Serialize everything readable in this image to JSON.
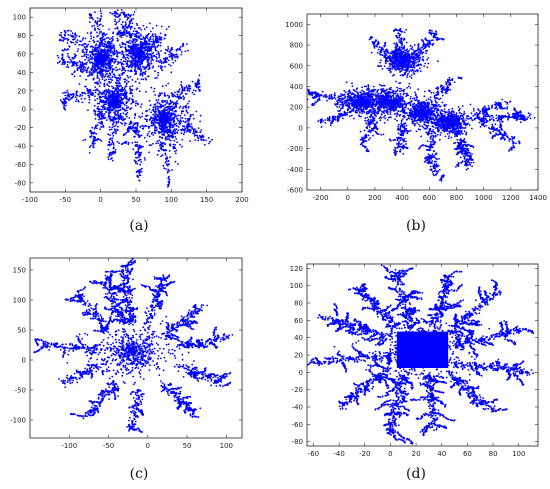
{
  "chart_data": [
    {
      "type": "scatter",
      "caption": "(a)",
      "xlim": [
        -100,
        200
      ],
      "ylim": [
        -90,
        110
      ],
      "xticks": [
        "-100",
        "-50",
        "0",
        "50",
        "100",
        "150",
        "200"
      ],
      "yticks": [
        "100",
        "80",
        "60",
        "40",
        "20",
        "0",
        "-20",
        "-40",
        "-60",
        "-80"
      ],
      "grid": false,
      "color": "#0000ff",
      "description_shape": "diffusion-limited aggregation cluster with several dense centers",
      "clusters": [
        {
          "x": 0,
          "y": 55,
          "spread": 30
        },
        {
          "x": 55,
          "y": 60,
          "spread": 35
        },
        {
          "x": 20,
          "y": 10,
          "spread": 30
        },
        {
          "x": 90,
          "y": -10,
          "spread": 35
        }
      ],
      "branches": [
        {
          "from": [
            45,
            60
          ],
          "to": [
            40,
            105
          ]
        },
        {
          "from": [
            60,
            60
          ],
          "to": [
            90,
            85
          ]
        },
        {
          "from": [
            10,
            60
          ],
          "to": [
            -10,
            100
          ]
        },
        {
          "from": [
            -10,
            40
          ],
          "to": [
            -60,
            55
          ]
        },
        {
          "from": [
            -5,
            20
          ],
          "to": [
            -55,
            10
          ]
        },
        {
          "from": [
            5,
            0
          ],
          "to": [
            -15,
            -40
          ]
        },
        {
          "from": [
            20,
            -5
          ],
          "to": [
            15,
            -55
          ]
        },
        {
          "from": [
            50,
            -10
          ],
          "to": [
            55,
            -75
          ]
        },
        {
          "from": [
            90,
            -20
          ],
          "to": [
            95,
            -70
          ]
        },
        {
          "from": [
            110,
            -15
          ],
          "to": [
            155,
            -35
          ]
        },
        {
          "from": [
            100,
            10
          ],
          "to": [
            140,
            30
          ]
        },
        {
          "from": [
            85,
            45
          ],
          "to": [
            120,
            70
          ]
        },
        {
          "from": [
            -20,
            70
          ],
          "to": [
            -55,
            80
          ]
        },
        {
          "from": [
            30,
            80
          ],
          "to": [
            20,
            105
          ]
        }
      ]
    },
    {
      "type": "scatter",
      "caption": "(b)",
      "xlim": [
        -300,
        1400
      ],
      "ylim": [
        -600,
        1100
      ],
      "xticks": [
        "-200",
        "0",
        "200",
        "400",
        "600",
        "800",
        "1000",
        "1200",
        "1400"
      ],
      "yticks": [
        "1000",
        "800",
        "600",
        "400",
        "200",
        "0",
        "-200",
        "-400",
        "-600"
      ],
      "grid": false,
      "color": "#0000ff",
      "description_shape": "elongated diffusion-limited aggregation cluster",
      "clusters": [
        {
          "x": 300,
          "y": 250,
          "spread": 180
        },
        {
          "x": 550,
          "y": 150,
          "spread": 170
        },
        {
          "x": 400,
          "y": 650,
          "spread": 160
        },
        {
          "x": 100,
          "y": 250,
          "spread": 150
        },
        {
          "x": 750,
          "y": 50,
          "spread": 140
        }
      ],
      "branches": [
        {
          "from": [
            400,
            600
          ],
          "to": [
            380,
            960
          ]
        },
        {
          "from": [
            500,
            650
          ],
          "to": [
            650,
            920
          ]
        },
        {
          "from": [
            300,
            650
          ],
          "to": [
            180,
            850
          ]
        },
        {
          "from": [
            100,
            250
          ],
          "to": [
            -280,
            320
          ]
        },
        {
          "from": [
            0,
            150
          ],
          "to": [
            -200,
            50
          ]
        },
        {
          "from": [
            200,
            100
          ],
          "to": [
            120,
            -150
          ]
        },
        {
          "from": [
            400,
            50
          ],
          "to": [
            380,
            -230
          ]
        },
        {
          "from": [
            600,
            0
          ],
          "to": [
            650,
            -470
          ]
        },
        {
          "from": [
            800,
            0
          ],
          "to": [
            900,
            -380
          ]
        },
        {
          "from": [
            900,
            100
          ],
          "to": [
            1340,
            110
          ]
        },
        {
          "from": [
            1000,
            50
          ],
          "to": [
            1250,
            -150
          ]
        },
        {
          "from": [
            950,
            150
          ],
          "to": [
            1180,
            250
          ]
        },
        {
          "from": [
            650,
            300
          ],
          "to": [
            780,
            470
          ]
        }
      ]
    },
    {
      "type": "scatter",
      "caption": "(c)",
      "xlim": [
        -150,
        120
      ],
      "ylim": [
        -130,
        170
      ],
      "xticks": [
        "-100",
        "-50",
        "0",
        "50",
        "100"
      ],
      "yticks": [
        "150",
        "100",
        "50",
        "0",
        "-50",
        "-100"
      ],
      "grid": false,
      "color": "#0000ff",
      "description_shape": "radial diffusion-limited aggregation cluster centered near origin",
      "clusters": [
        {
          "x": -20,
          "y": 15,
          "spread": 55
        }
      ],
      "branches": [
        {
          "from": [
            -20,
            60
          ],
          "to": [
            -30,
            155
          ]
        },
        {
          "from": [
            0,
            60
          ],
          "to": [
            20,
            140
          ]
        },
        {
          "from": [
            20,
            40
          ],
          "to": [
            70,
            90
          ]
        },
        {
          "from": [
            40,
            20
          ],
          "to": [
            105,
            40
          ]
        },
        {
          "from": [
            40,
            -10
          ],
          "to": [
            95,
            -40
          ]
        },
        {
          "from": [
            20,
            -40
          ],
          "to": [
            60,
            -90
          ]
        },
        {
          "from": [
            -10,
            -50
          ],
          "to": [
            -20,
            -115
          ]
        },
        {
          "from": [
            -40,
            -40
          ],
          "to": [
            -80,
            -95
          ]
        },
        {
          "from": [
            -60,
            -10
          ],
          "to": [
            -110,
            -40
          ]
        },
        {
          "from": [
            -60,
            20
          ],
          "to": [
            -135,
            25
          ]
        },
        {
          "from": [
            -50,
            50
          ],
          "to": [
            -90,
            110
          ]
        },
        {
          "from": [
            -30,
            60
          ],
          "to": [
            -55,
            140
          ]
        }
      ]
    },
    {
      "type": "scatter",
      "caption": "(d)",
      "xlim": [
        -65,
        115
      ],
      "ylim": [
        -85,
        125
      ],
      "xticks": [
        "-60",
        "-40",
        "-20",
        "0",
        "20",
        "40",
        "60",
        "80",
        "100"
      ],
      "yticks": [
        "120",
        "100",
        "80",
        "60",
        "40",
        "20",
        "0",
        "-20",
        "-40",
        "-60",
        "-80"
      ],
      "grid": false,
      "color": "#0000ff",
      "description_shape": "radial aggregation growing from a filled rectangular seed",
      "seed_rectangle": {
        "x": [
          5,
          45
        ],
        "y": [
          5,
          47
        ]
      },
      "clusters": [
        {
          "x": 25,
          "y": 25,
          "spread": 38
        }
      ],
      "branches": [
        {
          "from": [
            15,
            50
          ],
          "to": [
            5,
            115
          ]
        },
        {
          "from": [
            35,
            50
          ],
          "to": [
            45,
            110
          ]
        },
        {
          "from": [
            45,
            45
          ],
          "to": [
            85,
            95
          ]
        },
        {
          "from": [
            50,
            30
          ],
          "to": [
            105,
            50
          ]
        },
        {
          "from": [
            50,
            10
          ],
          "to": [
            110,
            0
          ]
        },
        {
          "from": [
            45,
            0
          ],
          "to": [
            80,
            -45
          ]
        },
        {
          "from": [
            30,
            0
          ],
          "to": [
            35,
            -65
          ]
        },
        {
          "from": [
            10,
            0
          ],
          "to": [
            0,
            -70
          ]
        },
        {
          "from": [
            0,
            5
          ],
          "to": [
            -40,
            -40
          ]
        },
        {
          "from": [
            0,
            20
          ],
          "to": [
            -60,
            10
          ]
        },
        {
          "from": [
            0,
            40
          ],
          "to": [
            -55,
            65
          ]
        },
        {
          "from": [
            5,
            50
          ],
          "to": [
            -25,
            95
          ]
        }
      ]
    }
  ]
}
